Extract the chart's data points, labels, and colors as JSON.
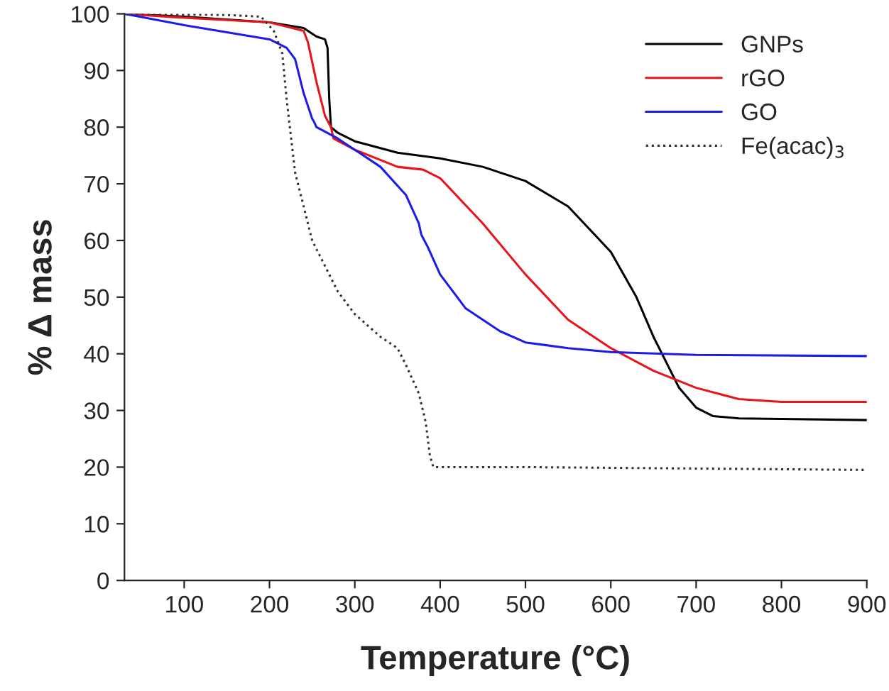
{
  "chart_data": {
    "type": "line",
    "xlabel": "Temperature (°C)",
    "ylabel": "% Δ mass",
    "xlim": [
      30,
      900
    ],
    "xticks": [
      100,
      200,
      300,
      400,
      500,
      600,
      700,
      800,
      900
    ],
    "ylim": [
      0,
      100
    ],
    "yticks": [
      0,
      10,
      20,
      30,
      40,
      50,
      60,
      70,
      80,
      90,
      100
    ],
    "grid": false,
    "legend": "top right",
    "marker": "none",
    "series": [
      {
        "name": "GNPs",
        "color": "#000000",
        "line_style": "solid",
        "x": [
          30,
          100,
          200,
          240,
          255,
          265,
          268,
          270,
          272,
          280,
          300,
          350,
          400,
          450,
          500,
          550,
          600,
          630,
          650,
          660,
          680,
          700,
          720,
          750,
          800,
          900
        ],
        "values": [
          100,
          99.5,
          98.5,
          97.5,
          96,
          95.5,
          94,
          85,
          80,
          79,
          77.5,
          75.5,
          74.5,
          73,
          70.5,
          66,
          58,
          50,
          43,
          40,
          34,
          30.5,
          29,
          28.6,
          28.5,
          28.3
        ]
      },
      {
        "name": "rGO",
        "color": "#e8141c",
        "line_style": "solid",
        "x": [
          30,
          100,
          200,
          240,
          245,
          255,
          265,
          272,
          275,
          300,
          350,
          380,
          400,
          450,
          500,
          550,
          600,
          650,
          700,
          750,
          800,
          900
        ],
        "values": [
          100,
          99.3,
          98.5,
          97,
          95,
          88,
          82,
          80,
          78,
          76,
          73,
          72.5,
          71,
          63,
          54,
          46,
          41,
          37,
          34,
          32,
          31.5,
          31.5
        ]
      },
      {
        "name": "GO",
        "color": "#1c1ce8",
        "line_style": "solid",
        "x": [
          30,
          100,
          200,
          220,
          230,
          240,
          250,
          252,
          255,
          280,
          300,
          330,
          360,
          375,
          378,
          385,
          400,
          430,
          470,
          500,
          550,
          600,
          700,
          900
        ],
        "values": [
          100,
          98,
          95.5,
          94,
          92,
          86,
          81.5,
          81,
          80,
          78,
          76,
          73,
          68,
          63,
          61,
          59,
          54,
          48,
          44,
          42,
          41,
          40.3,
          39.8,
          39.6
        ]
      },
      {
        "name": "Fe(acac)$_{3}$",
        "color": "#333333",
        "line_style": "dotted",
        "x": [
          30,
          150,
          190,
          205,
          215,
          220,
          230,
          250,
          280,
          300,
          330,
          350,
          360,
          375,
          383,
          388,
          392,
          500,
          900
        ],
        "values": [
          100,
          99.8,
          99.5,
          97,
          93,
          85,
          72,
          60,
          51,
          47,
          43,
          41,
          38,
          33,
          28,
          22,
          20,
          20,
          19.5
        ]
      }
    ]
  }
}
